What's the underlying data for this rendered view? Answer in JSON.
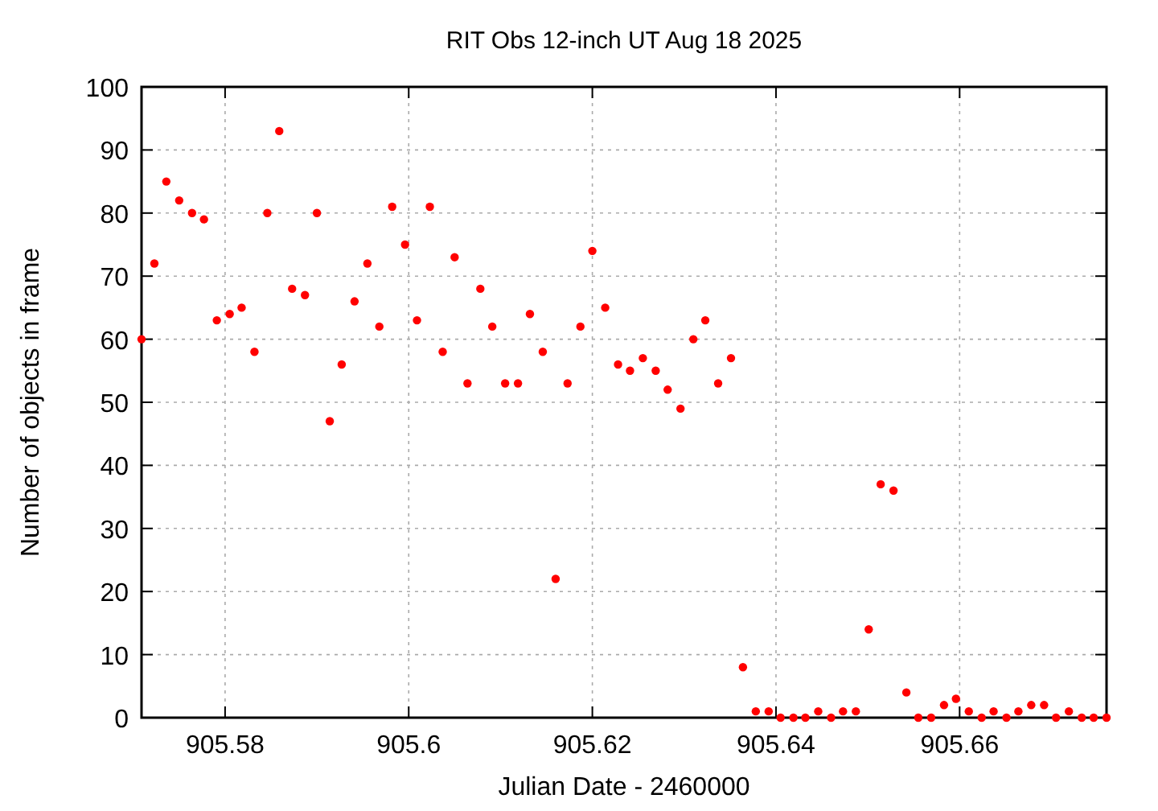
{
  "chart_data": {
    "type": "scatter",
    "title": "RIT Obs 12-inch UT Aug 18 2025",
    "xlabel": "Julian Date - 2460000",
    "ylabel": "Number of objects in frame",
    "x": [
      905.5709,
      905.5723,
      905.5736,
      905.575,
      905.5764,
      905.5777,
      905.5791,
      905.5805,
      905.5818,
      905.5832,
      905.5846,
      905.5859,
      905.5873,
      905.5887,
      905.59,
      905.5914,
      905.5927,
      905.5941,
      905.5955,
      905.5968,
      905.5982,
      905.5996,
      905.6009,
      905.6023,
      905.6037,
      905.605,
      905.6064,
      905.6078,
      905.6091,
      905.6105,
      905.6119,
      905.6132,
      905.6146,
      905.616,
      905.6173,
      905.6187,
      905.62,
      905.6214,
      905.6228,
      905.6241,
      905.6255,
      905.6269,
      905.6282,
      905.6296,
      905.631,
      905.6323,
      905.6337,
      905.6351,
      905.6364,
      905.6378,
      905.6392,
      905.6405,
      905.6419,
      905.6432,
      905.6446,
      905.646,
      905.6473,
      905.6487,
      905.6501,
      905.6514,
      905.6528,
      905.6542,
      905.6555,
      905.6569,
      905.6583,
      905.6596,
      905.661,
      905.6624,
      905.6637,
      905.6651,
      905.6664,
      905.6678,
      905.6692,
      905.6705,
      905.6719,
      905.6733,
      905.6746,
      905.676
    ],
    "values": [
      60,
      72,
      85,
      82,
      80,
      79,
      63,
      64,
      65,
      58,
      80,
      93,
      68,
      67,
      80,
      47,
      56,
      66,
      72,
      62,
      81,
      75,
      63,
      81,
      58,
      73,
      53,
      68,
      62,
      53,
      53,
      64,
      58,
      22,
      53,
      62,
      74,
      65,
      56,
      55,
      57,
      55,
      52,
      49,
      60,
      63,
      53,
      57,
      8,
      1,
      1,
      0,
      0,
      0,
      1,
      0,
      1,
      1,
      14,
      37,
      36,
      4,
      0,
      0,
      2,
      3,
      1,
      0,
      1,
      0,
      1,
      2,
      2,
      0,
      1,
      0,
      0,
      0
    ],
    "color": "#ff0000",
    "marker": "circle",
    "grid": true,
    "xlim": [
      905.5709,
      905.676
    ],
    "xticks": [
      905.58,
      905.6,
      905.62,
      905.64,
      905.66
    ],
    "ylim": [
      0,
      100
    ],
    "yticks": [
      0,
      10,
      20,
      30,
      40,
      50,
      60,
      70,
      80,
      90,
      100
    ]
  }
}
